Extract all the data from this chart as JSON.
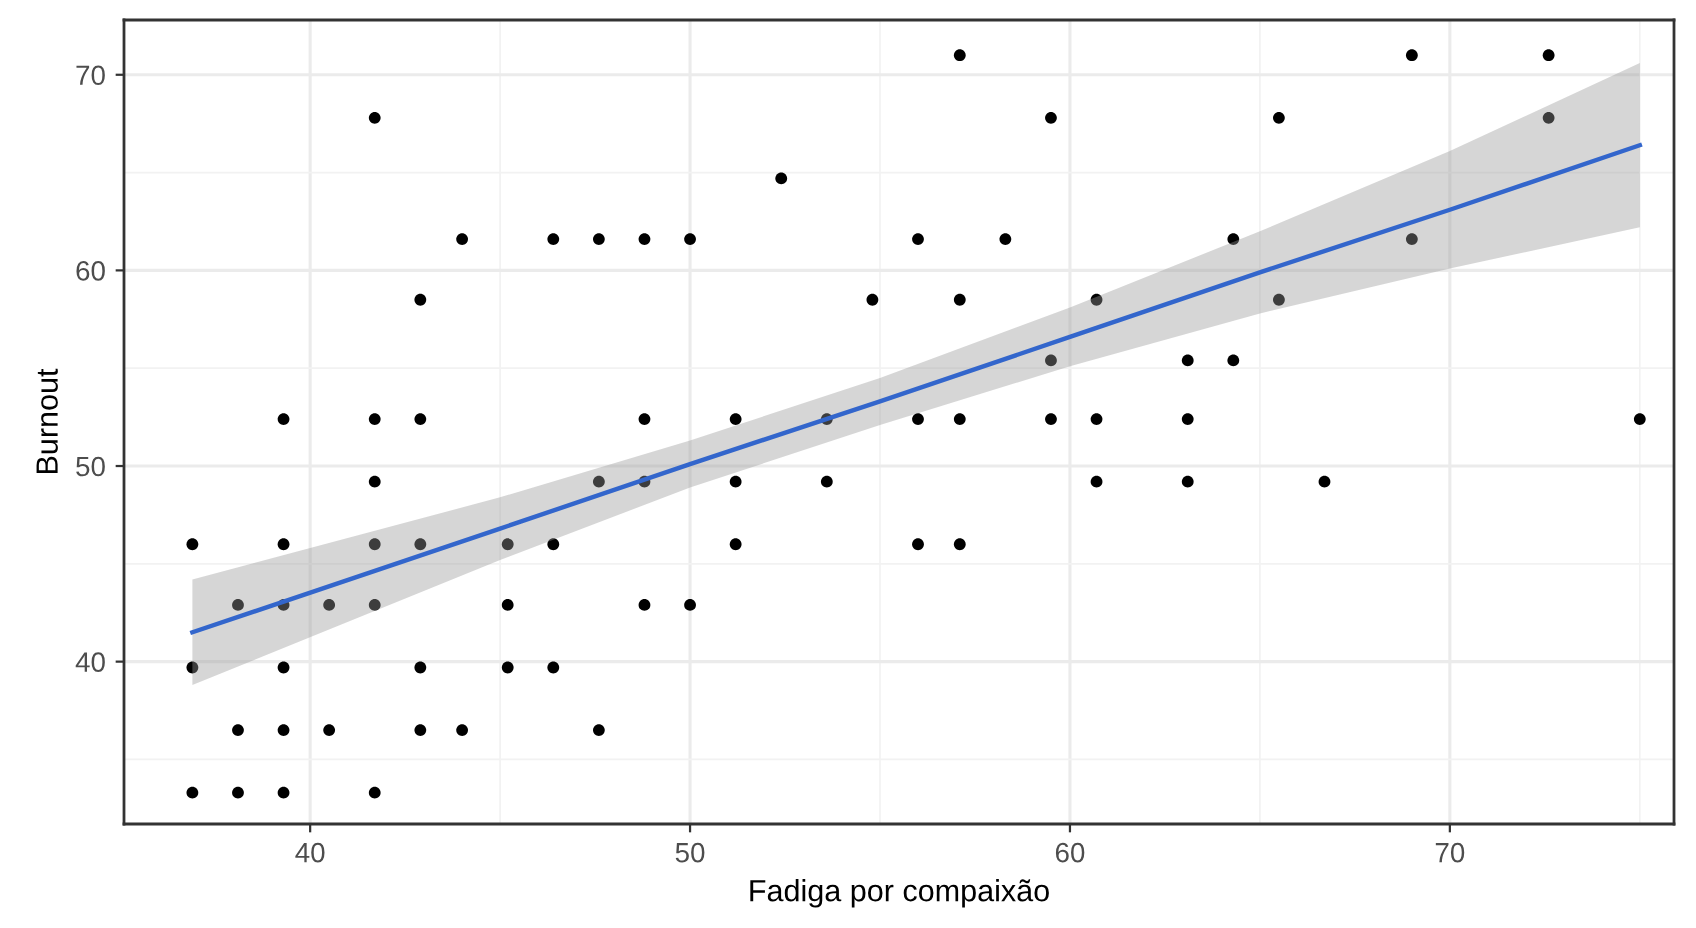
{
  "chart_data": {
    "type": "scatter",
    "xlabel": "Fadiga por compaixão",
    "ylabel": "Burnout",
    "xlim": [
      35.1,
      75.9
    ],
    "ylim": [
      31.7,
      72.8
    ],
    "xticks": [
      40,
      50,
      60,
      70
    ],
    "yticks": [
      40,
      50,
      60,
      70
    ],
    "grid": true,
    "marker": "circle",
    "legend": false,
    "series": [
      {
        "color": "#000000",
        "x": [
          36.9,
          38.1,
          39.3,
          41.7,
          38.1,
          39.3,
          40.5,
          42.9,
          44.0,
          47.6,
          36.9,
          39.3,
          42.9,
          45.2,
          46.4,
          38.1,
          39.3,
          40.5,
          41.7,
          45.2,
          48.8,
          50.0,
          36.9,
          39.3,
          41.7,
          42.9,
          45.2,
          46.4,
          51.2,
          56.0,
          57.1,
          41.7,
          47.6,
          48.8,
          51.2,
          53.6,
          60.7,
          63.1,
          66.7,
          39.3,
          41.7,
          42.9,
          48.8,
          51.2,
          53.6,
          56.0,
          57.1,
          59.5,
          60.7,
          63.1,
          75.0,
          59.5,
          63.1,
          64.3,
          42.9,
          54.8,
          57.1,
          60.7,
          65.5,
          44.0,
          46.4,
          47.6,
          48.8,
          50.0,
          56.0,
          58.3,
          64.3,
          69.0,
          52.4,
          41.7,
          59.5,
          65.5,
          72.6,
          57.1,
          69.0,
          72.6
        ],
        "values": [
          33.3,
          33.3,
          33.3,
          33.3,
          36.5,
          36.5,
          36.5,
          36.5,
          36.5,
          36.5,
          39.7,
          39.7,
          39.7,
          39.7,
          39.7,
          42.9,
          42.9,
          42.9,
          42.9,
          42.9,
          42.9,
          42.9,
          46.0,
          46.0,
          46.0,
          46.0,
          46.0,
          46.0,
          46.0,
          46.0,
          46.0,
          49.2,
          49.2,
          49.2,
          49.2,
          49.2,
          49.2,
          49.2,
          49.2,
          52.4,
          52.4,
          52.4,
          52.4,
          52.4,
          52.4,
          52.4,
          52.4,
          52.4,
          52.4,
          52.4,
          52.4,
          55.4,
          55.4,
          55.4,
          58.5,
          58.5,
          58.5,
          58.5,
          58.5,
          61.6,
          61.6,
          61.6,
          61.6,
          61.6,
          61.6,
          61.6,
          61.6,
          61.6,
          64.7,
          67.8,
          67.8,
          67.8,
          67.8,
          71.0,
          71.0,
          71.0
        ]
      },
      {
        "type": "line",
        "color": "#3366cc",
        "marker": "none",
        "x": [
          36.9,
          45,
          50,
          55,
          60,
          65,
          70,
          75
        ],
        "values": [
          41.5,
          46.8,
          50.1,
          53.3,
          56.6,
          59.9,
          63.1,
          66.4
        ],
        "lower": [
          38.8,
          45.2,
          48.9,
          52.1,
          55.1,
          57.8,
          60.1,
          62.2
        ],
        "upper": [
          44.2,
          48.4,
          51.3,
          54.5,
          58.1,
          62.0,
          66.1,
          70.6
        ]
      }
    ]
  }
}
